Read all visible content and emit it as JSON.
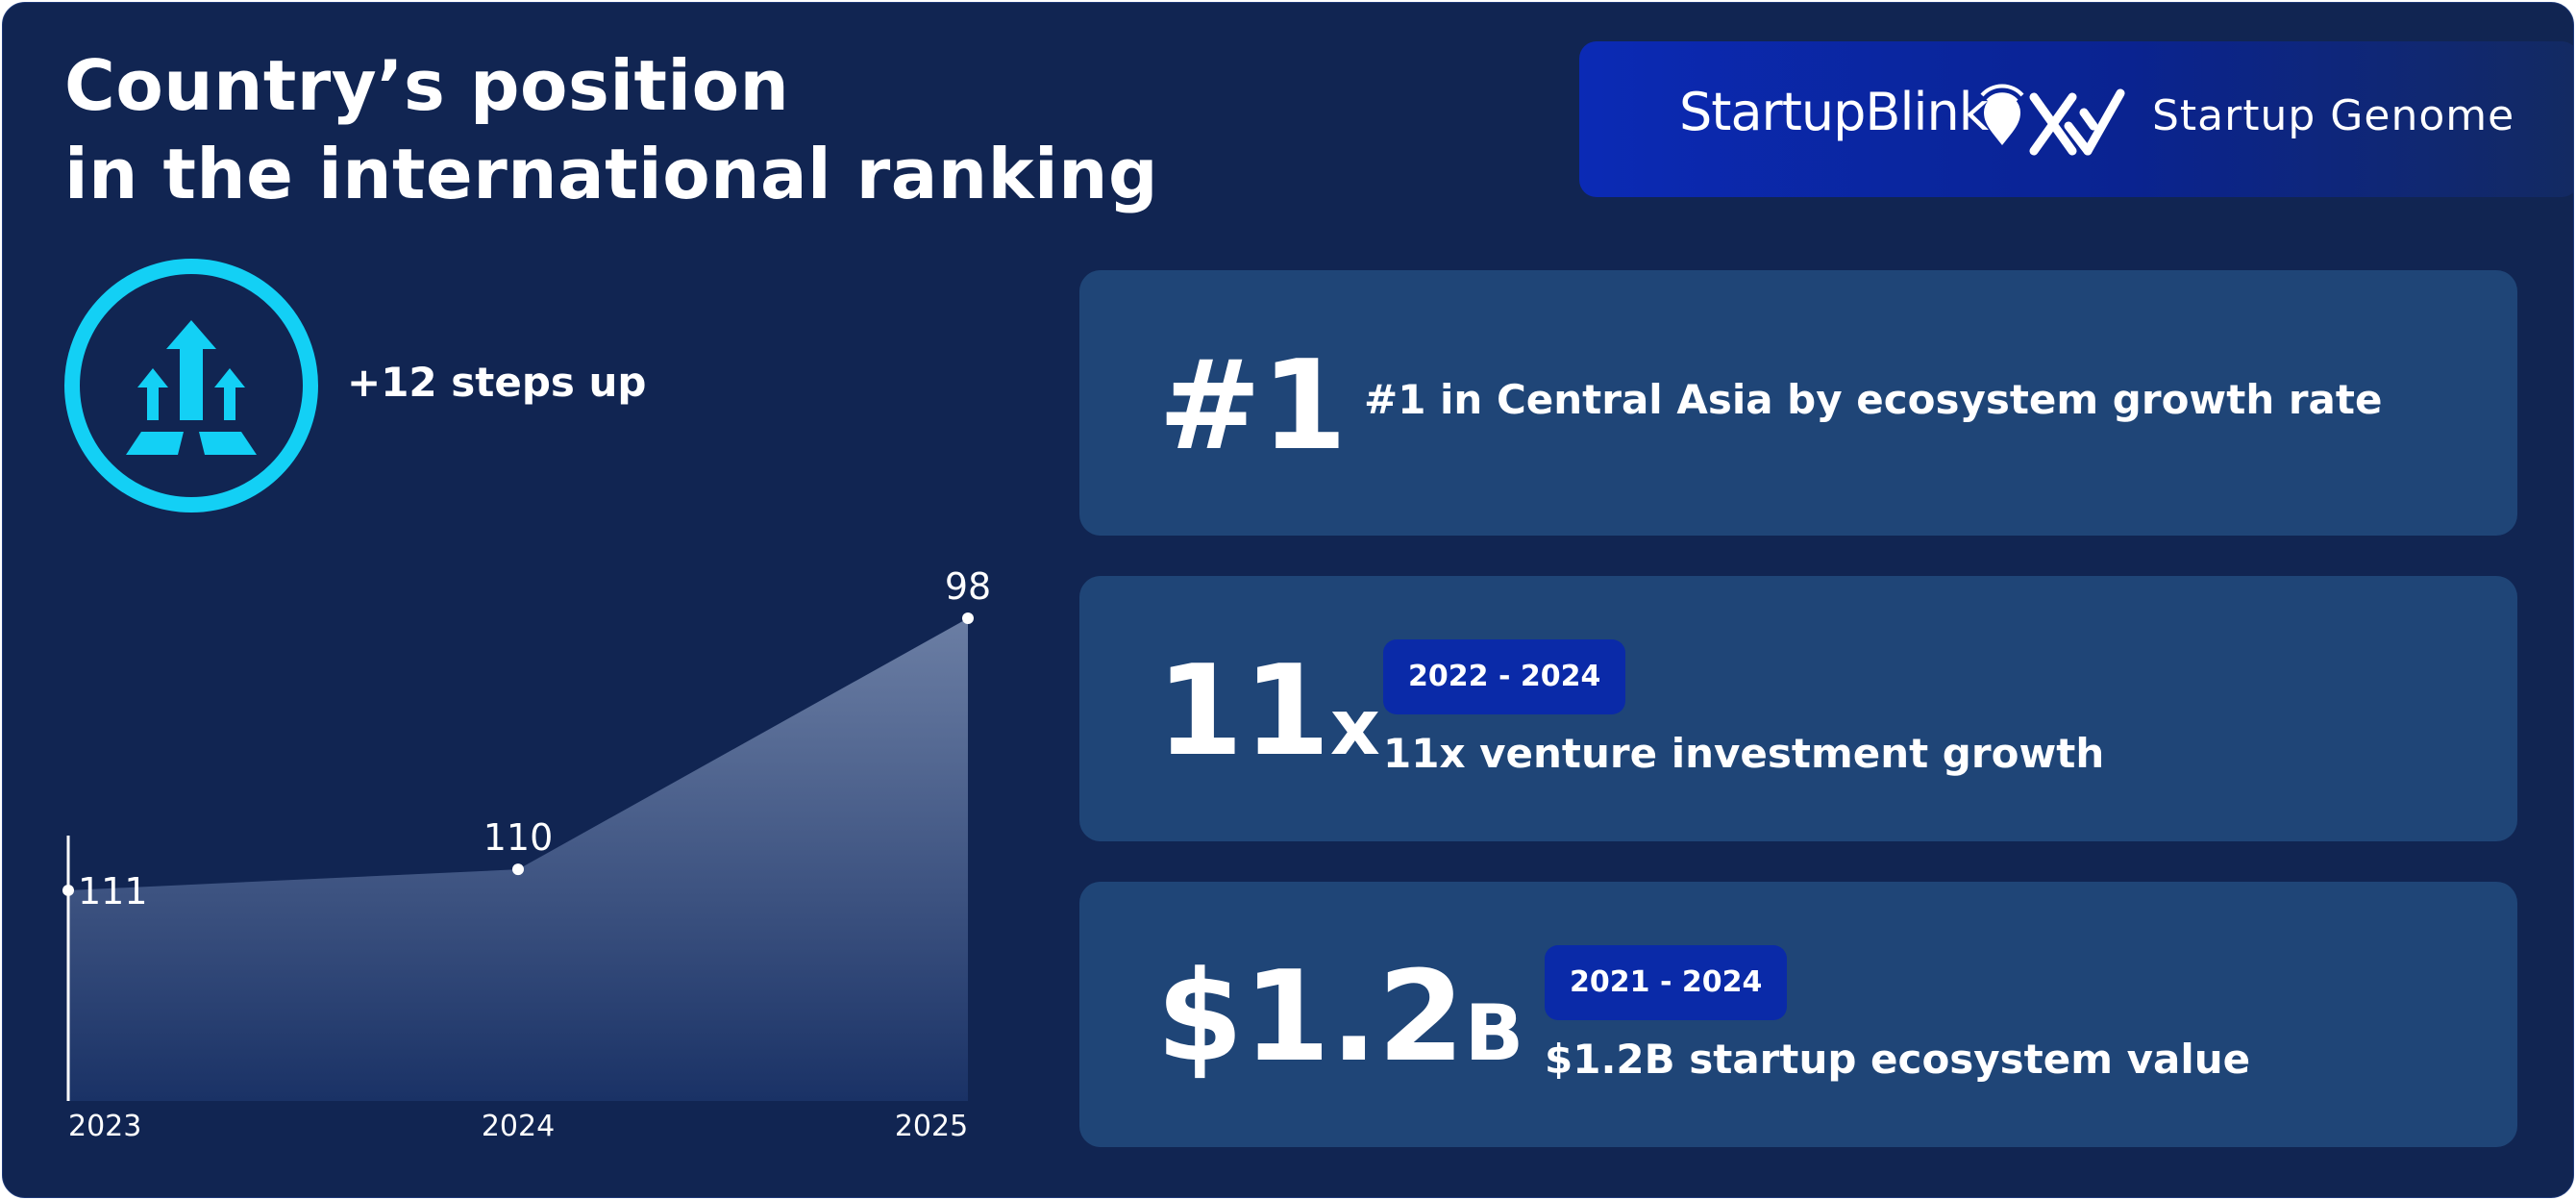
{
  "header": {
    "title_line1": "Country’s position",
    "title_line2": "in the international ranking"
  },
  "logos": {
    "startupblink": "StartupBlink",
    "startup_genome": "Startup Genome"
  },
  "ranking_badge": {
    "text": "+12 steps up",
    "icon": "arrows-up-icon",
    "color": "#13d0f5"
  },
  "stats": [
    {
      "big": "#1",
      "big_suffix": "",
      "period": "",
      "desc": "#1 in Central Asia by ecosystem growth rate"
    },
    {
      "big": "11",
      "big_suffix": "x",
      "period": "2022 - 2024",
      "desc": "11x venture investment growth"
    },
    {
      "big": "$1.2",
      "big_suffix": "B",
      "period": "2021 - 2024",
      "desc": "$1.2B startup ecosystem value"
    }
  ],
  "colors": {
    "background": "#112552",
    "card": "#1f4577",
    "pill": "#0a2aa8",
    "accent": "#13d0f5"
  },
  "chart_data": {
    "type": "area",
    "x": [
      "2023",
      "2024",
      "2025"
    ],
    "values": [
      111,
      110,
      98
    ],
    "data_labels": [
      "111",
      "110",
      "98"
    ],
    "title": "",
    "xlabel": "",
    "ylabel": "",
    "y_inverted": true,
    "ylim": [
      115,
      98
    ],
    "grid": false
  }
}
